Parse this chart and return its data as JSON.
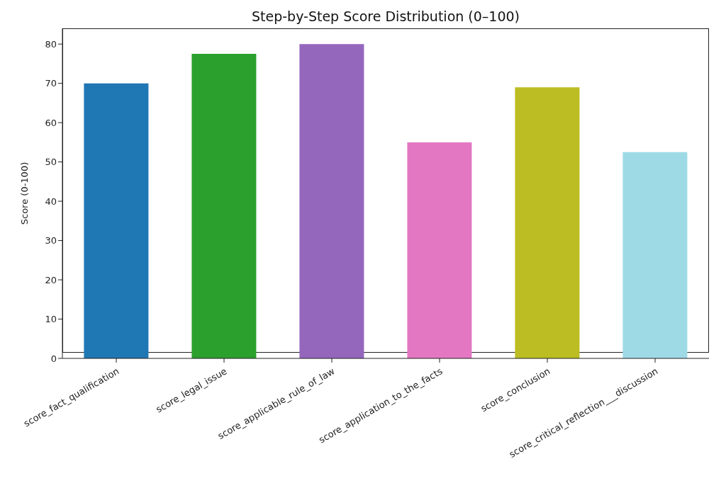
{
  "chart_data": {
    "type": "bar",
    "title": "Step-by-Step Score Distribution (0–100)",
    "ylabel": "Score (0-100)",
    "categories": [
      "score_fact_qualification",
      "score_legal_issue",
      "score_applicable_rule_of_law",
      "score_application_to_the_facts",
      "score_conclusion",
      "score_critical_reflection___discussion"
    ],
    "values": [
      70,
      77.5,
      80,
      55,
      69,
      52.5
    ],
    "colors": [
      "#1f77b4",
      "#2ca02c",
      "#9467bd",
      "#e377c2",
      "#bcbd22",
      "#9edae5"
    ],
    "ylim": [
      0,
      84
    ],
    "yticks": [
      0,
      10,
      20,
      30,
      40,
      50,
      60,
      70,
      80
    ],
    "grid": false
  }
}
